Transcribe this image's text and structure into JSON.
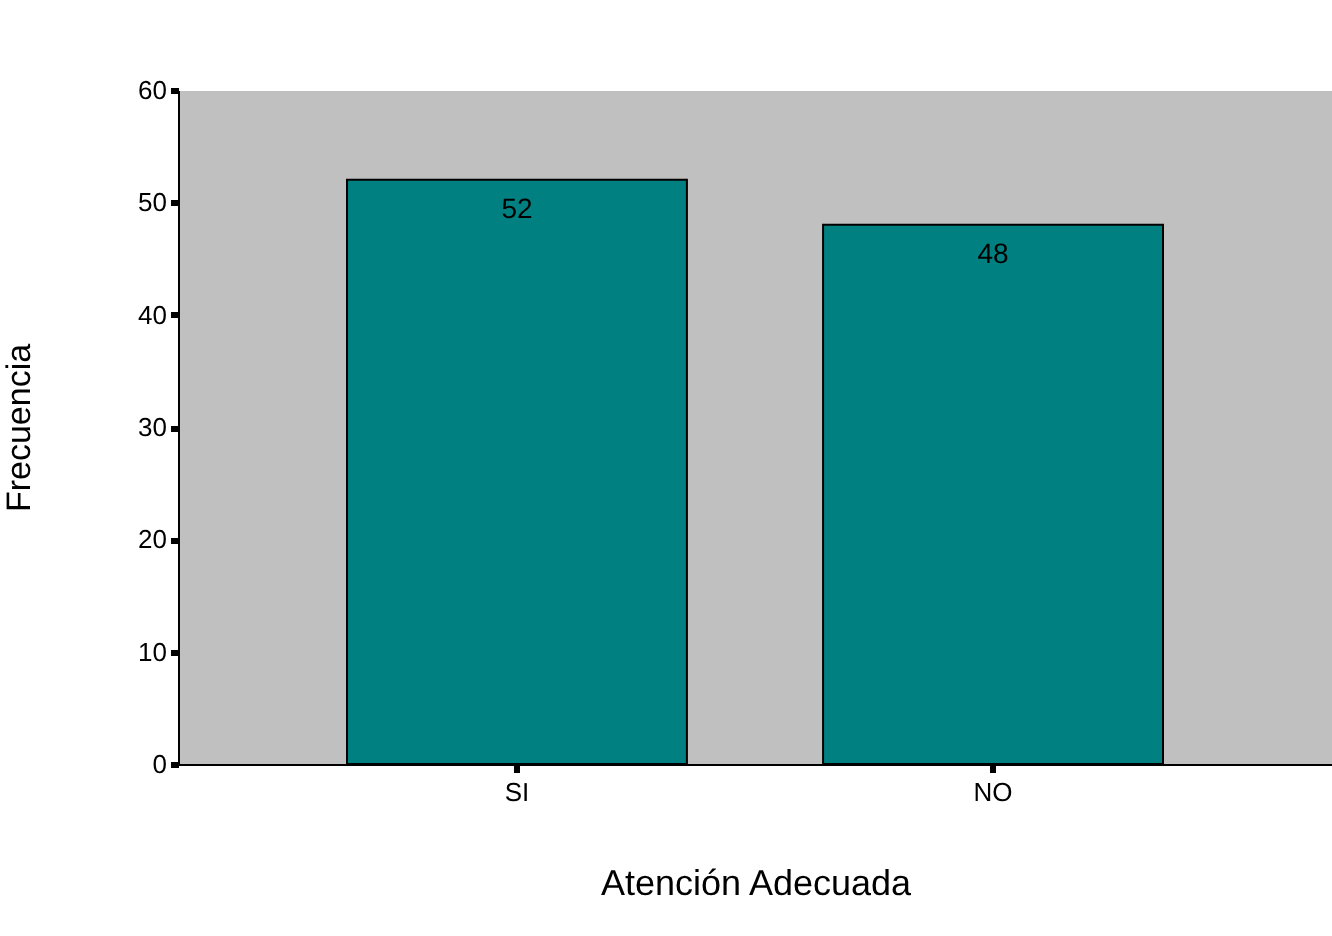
{
  "chart_data": {
    "type": "bar",
    "xlabel": "Atención Adecuada",
    "ylabel": "Frecuencia",
    "categories": [
      "SI",
      "NO"
    ],
    "values": [
      52,
      48
    ],
    "color": "#008080",
    "ylim": [
      0,
      60
    ],
    "yticks": [
      0,
      10,
      20,
      30,
      40,
      50,
      60
    ],
    "data_labels": true,
    "grid": false
  }
}
